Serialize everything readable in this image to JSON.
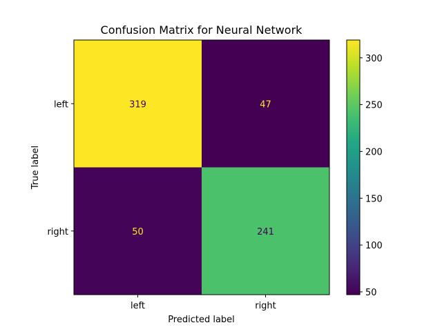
{
  "chart_data": {
    "type": "heatmap",
    "title": "Confusion Matrix for Neural Network",
    "xlabel": "Predicted label",
    "ylabel": "True label",
    "x_categories": [
      "left",
      "right"
    ],
    "y_categories": [
      "left",
      "right"
    ],
    "values": [
      [
        319,
        47
      ],
      [
        50,
        241
      ]
    ],
    "colormap": "viridis",
    "colorbar": {
      "min": 47,
      "max": 319,
      "ticks": [
        50,
        100,
        150,
        200,
        250,
        300
      ],
      "tick_labels": [
        "50",
        "100",
        "150",
        "200",
        "250",
        "300"
      ]
    },
    "text_colors": {
      "light_cells": "#440154",
      "dark_cells": "#fde725"
    },
    "grid": false,
    "legend": "none"
  }
}
